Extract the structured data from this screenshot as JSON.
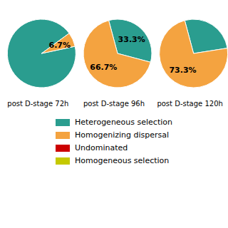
{
  "chart_data": [
    {
      "type": "pie",
      "title": "post D-stage 72h",
      "categories": [
        "Heterogeneous selection",
        "Homogenizing dispersal",
        "Undominated",
        "Homogeneous selection"
      ],
      "values": [
        93.3,
        6.7,
        null,
        null
      ],
      "value_labels": [
        null,
        "6.7%",
        null,
        null
      ],
      "colors": [
        "#2a9d8f",
        "#f4a340",
        "#cc0000",
        "#c5c900"
      ],
      "data_labels": true
    },
    {
      "type": "pie",
      "title": "post D-stage 96h",
      "categories": [
        "Heterogeneous selection",
        "Homogenizing dispersal",
        "Undominated",
        "Homogeneous selection"
      ],
      "values": [
        33.3,
        66.7,
        null,
        null
      ],
      "value_labels": [
        "33.3%",
        "66.7%",
        null,
        null
      ],
      "colors": [
        "#2a9d8f",
        "#f4a340",
        "#cc0000",
        "#c5c900"
      ],
      "data_labels": true
    },
    {
      "type": "pie",
      "title": "post D-stage 120h",
      "categories": [
        "Heterogeneous selection",
        "Homogenizing dispersal",
        "Undominated",
        "Homogeneous selection"
      ],
      "values": [
        26.7,
        73.3,
        null,
        null
      ],
      "value_labels": [
        null,
        "73.3%",
        null,
        null
      ],
      "colors": [
        "#2a9d8f",
        "#f4a340",
        "#cc0000",
        "#c5c900"
      ],
      "data_labels": true
    }
  ]
}
